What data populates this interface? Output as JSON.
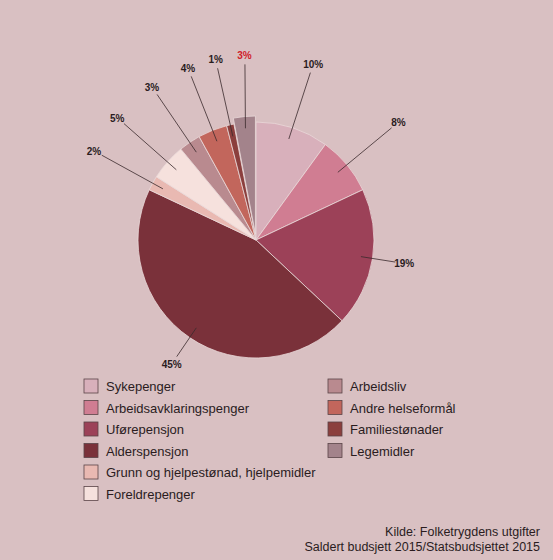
{
  "chart_data": {
    "type": "pie",
    "categories": [
      "Sykepenger",
      "Arbeidsavklaringspenger",
      "Uførepensjon",
      "Alderspensjon",
      "Grunn og hjelpestønad, hjelpemidler",
      "Foreldrepenger",
      "Arbeidsliv",
      "Andre helseformål",
      "Familiestønader",
      "Legemidler"
    ],
    "values": [
      10,
      8,
      19,
      45,
      2,
      5,
      3,
      4,
      1,
      3
    ],
    "value_labels": [
      "10%",
      "8%",
      "19%",
      "45%",
      "2%",
      "5%",
      "3%",
      "4%",
      "1%",
      "3%"
    ],
    "colors": [
      "#d8b0bb",
      "#d07d92",
      "#9c4158",
      "#7a313a",
      "#e9b9b2",
      "#f6e1dd",
      "#b98a8f",
      "#c2665c",
      "#8b3f3d",
      "#a3838b"
    ],
    "data_labels": true,
    "legend": "bottom",
    "source": [
      "Kilde: Folketrygdens utgifter",
      "Saldert budsjett 2015/Statsbudsjettet 2015"
    ]
  }
}
